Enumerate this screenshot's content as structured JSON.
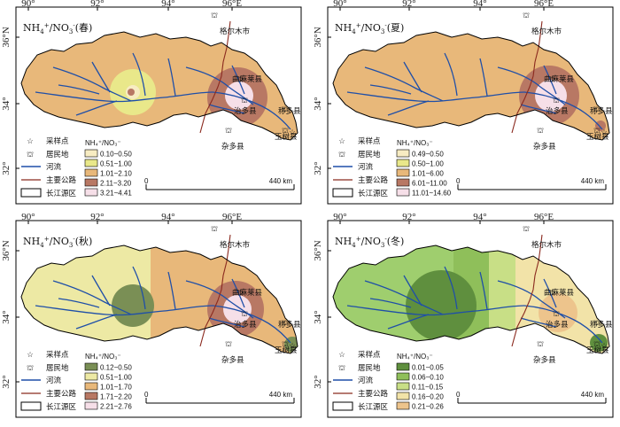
{
  "coords": {
    "lon": [
      "90°",
      "92°",
      "94°",
      "96°E"
    ],
    "lat": [
      "36°N",
      "34°",
      "32°"
    ]
  },
  "places": {
    "golmud": "格尔木市",
    "qumalai": "曲麻莱县",
    "zhiduo": "治多县",
    "chenduo": "称多县",
    "yushu": "玉树县",
    "zaduo": "杂多县"
  },
  "legend": {
    "sample": "采样点",
    "settlement": "居民地",
    "river": "河流",
    "road": "主要公路",
    "basin": "长江源区"
  },
  "scale": {
    "zero": "0",
    "end": "440 km"
  },
  "colors": {
    "boundary": "#000000",
    "river": "#1f4fa8",
    "road": "#8b2a1f",
    "sample": "#8e3bbd"
  },
  "panels": [
    {
      "title_pre": "NH",
      "title_mid": "/NO",
      "title_season": "(春)",
      "legend_title": "NH₄⁺/NO₃⁻",
      "base": "#e8b87a",
      "classes": [
        {
          "range": "0.10~0.50",
          "color": "#f7ecc2"
        },
        {
          "range": "0.51~1.00",
          "color": "#e9e88a"
        },
        {
          "range": "1.01~2.10",
          "color": "#e8b87a"
        },
        {
          "range": "2.11~3.20",
          "color": "#b87864"
        },
        {
          "range": "3.21~4.41",
          "color": "#f6dfe8"
        }
      ]
    },
    {
      "title_pre": "NH",
      "title_mid": "/NO",
      "title_season": "(夏)",
      "legend_title": "NH₄⁺/NO₃⁻",
      "base": "#e8b87a",
      "classes": [
        {
          "range": "0.49~0.50",
          "color": "#f7ecc2"
        },
        {
          "range": "0.50~1.00",
          "color": "#e9e88a"
        },
        {
          "range": "1.01~6.00",
          "color": "#e8b87a"
        },
        {
          "range": "6.01~11.00",
          "color": "#b87864"
        },
        {
          "range": "11.01~14.60",
          "color": "#f6dfe8"
        }
      ]
    },
    {
      "title_pre": "NH",
      "title_mid": "/NO",
      "title_season": "(秋)",
      "legend_title": "NH₄⁺/NO₃⁻",
      "base": "#ede9a4",
      "classes": [
        {
          "range": "0.12~0.50",
          "color": "#7a8f55"
        },
        {
          "range": "0.51~1.00",
          "color": "#ede9a4"
        },
        {
          "range": "1.01~1.70",
          "color": "#e8b87a"
        },
        {
          "range": "1.71~2.20",
          "color": "#b87864"
        },
        {
          "range": "2.21~2.76",
          "color": "#f6dfe8"
        }
      ]
    },
    {
      "title_pre": "NH",
      "title_mid": "/NO",
      "title_season": "(冬)",
      "legend_title": "NH₄⁺/NO₃⁻",
      "base": "#9fce6e",
      "classes": [
        {
          "range": "0.01~0.05",
          "color": "#5f8f3e"
        },
        {
          "range": "0.06~0.10",
          "color": "#8fbf5a"
        },
        {
          "range": "0.11~0.15",
          "color": "#c8df86"
        },
        {
          "range": "0.16~0.20",
          "color": "#f2e3a8"
        },
        {
          "range": "0.21~0.26",
          "color": "#edc48c"
        }
      ]
    }
  ]
}
